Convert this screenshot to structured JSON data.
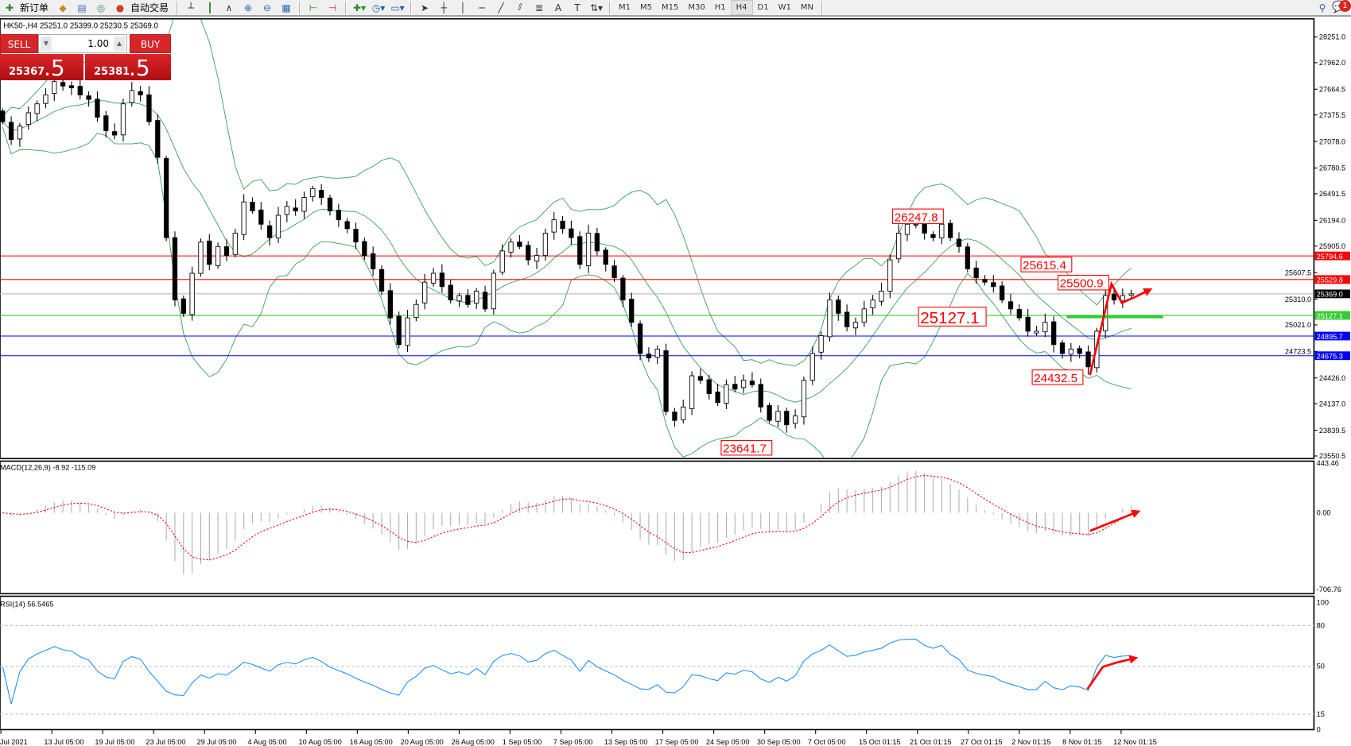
{
  "toolbar": {
    "new_order": "新订单",
    "auto_trading": "自动交易",
    "timeframes": [
      "M1",
      "M5",
      "M15",
      "M30",
      "H1",
      "H4",
      "D1",
      "W1",
      "MN"
    ],
    "active_timeframe": "H4",
    "notification_count": "1"
  },
  "chart": {
    "title": "HK50-,H4  25251.0 25399.0 25230.5 25369.0",
    "macd_label": "MACD(12,26,9) -8.92 -115.09",
    "rsi_label": "RSI(14) 56.5465"
  },
  "trade_panel": {
    "sell_label": "SELL",
    "buy_label": "BUY",
    "volume": "1.00",
    "sell_price_main": "25367",
    "sell_price_frac": ".5",
    "buy_price_main": "25381",
    "buy_price_frac": ".5"
  },
  "colors": {
    "bull_candle": "#ffffff",
    "bear_candle": "#000000",
    "bollinger": "#2e9e4f",
    "macd_hist": "#b0b0b0",
    "macd_signal": "#ff0000",
    "rsi_line": "#1e90ff",
    "annotation": "#ff0000"
  },
  "chart_data": [
    {
      "type": "candlestick",
      "symbol": "HK50-",
      "timeframe": "H4",
      "ylim": [
        23550.5,
        28251.0
      ],
      "price_axis": [
        "28251.0",
        "27962.0",
        "27664.5",
        "27375.5",
        "27078.0",
        "26780.5",
        "26491.5",
        "26194.0",
        "25905.0",
        "25607.5",
        "25310.0",
        "25021.0",
        "24723.5",
        "24426.0",
        "24137.0",
        "23839.5",
        "23550.5"
      ],
      "time_axis": [
        "Jul 2021",
        "13 Jul 05:00",
        "19 Jul 05:00",
        "23 Jul 05:00",
        "29 Jul 05:00",
        "4 Aug 05:00",
        "10 Aug 05:00",
        "16 Aug 05:00",
        "20 Aug 05:00",
        "26 Aug 05:00",
        "1 Sep 05:00",
        "7 Sep 05:00",
        "13 Sep 05:00",
        "17 Sep 05:00",
        "24 Sep 05:00",
        "30 Sep 05:00",
        "7 Oct 05:00",
        "15 Oct 01:15",
        "21 Oct 01:15",
        "27 Oct 01:15",
        "2 Nov 01:15",
        "8 Nov 01:15",
        "12 Nov 01:15"
      ],
      "close": [
        27300,
        27100,
        27250,
        27400,
        27500,
        27600,
        27750,
        27700,
        27680,
        27600,
        27550,
        27350,
        27200,
        27150,
        27500,
        27650,
        27600,
        27300,
        26900,
        26000,
        25300,
        25150,
        25600,
        25950,
        25700,
        25900,
        25800,
        26050,
        26400,
        26300,
        26150,
        26000,
        26250,
        26350,
        26300,
        26450,
        26550,
        26450,
        26300,
        26200,
        26100,
        25950,
        25800,
        25650,
        25400,
        25100,
        24800,
        25100,
        25250,
        25500,
        25600,
        25450,
        25300,
        25350,
        25250,
        25400,
        25200,
        25600,
        25850,
        25950,
        25900,
        25750,
        25800,
        26050,
        26200,
        26100,
        26000,
        25700,
        26050,
        25850,
        25700,
        25550,
        25300,
        25050,
        24700,
        24650,
        24750,
        24050,
        23950,
        24100,
        24450,
        24400,
        24250,
        24150,
        24350,
        24300,
        24400,
        24350,
        24100,
        23950,
        24050,
        23900,
        24000,
        24400,
        24700,
        24900,
        25300,
        25150,
        25000,
        25050,
        25200,
        25300,
        25400,
        25750,
        26050,
        26150,
        26150,
        26050,
        26000,
        26150,
        26000,
        25900,
        25650,
        25550,
        25500,
        25450,
        25300,
        25200,
        25100,
        24950,
        24950,
        25050,
        24800,
        24700,
        24750,
        24700,
        24550,
        24950,
        25350,
        25300,
        25350,
        25369
      ],
      "levels": [
        {
          "price": "25794.6",
          "color": "#ff0000"
        },
        {
          "price": "25529.8",
          "color": "#ff0000"
        },
        {
          "price": "25369.0",
          "color": "#000000"
        },
        {
          "price": "25127.1",
          "color": "#33cc33"
        },
        {
          "price": "24895.7",
          "color": "#0000ff"
        },
        {
          "price": "24675.3",
          "color": "#0000ff"
        }
      ],
      "annotations": [
        "26247.8",
        "25615.4",
        "25500.9",
        "25127.1",
        "24432.5",
        "23641.7"
      ],
      "indicators": [
        "Bollinger Bands"
      ]
    },
    {
      "type": "bar+line",
      "name": "MACD(12,26,9)",
      "ylim": [
        -706.76,
        443.46
      ],
      "axis_labels": [
        "443.46",
        "0.00",
        "-706.76"
      ]
    },
    {
      "type": "line",
      "name": "RSI(14)",
      "ylim": [
        0,
        100
      ],
      "levels": [
        80,
        50,
        15
      ],
      "axis_labels": [
        "100",
        "80",
        "50",
        "15",
        "0"
      ]
    }
  ]
}
